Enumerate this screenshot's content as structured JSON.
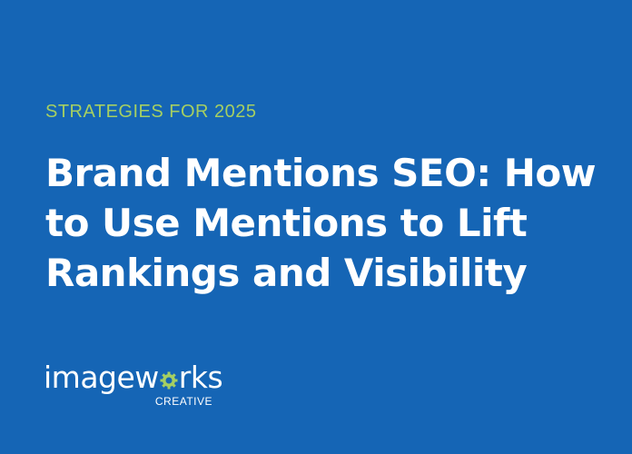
{
  "eyebrow": "STRATEGIES FOR 2025",
  "title_lines": [
    "Brand Mentions SEO: How",
    "to Use Mentions to Lift",
    "Rankings and Visibility"
  ],
  "logo": {
    "word_before": "imagew",
    "word_after": "rks",
    "sub": "CREATIVE",
    "gear_icon": "gear-icon"
  },
  "colors": {
    "background": "#1565b5",
    "accent": "#a5cf62",
    "text": "#ffffff"
  }
}
